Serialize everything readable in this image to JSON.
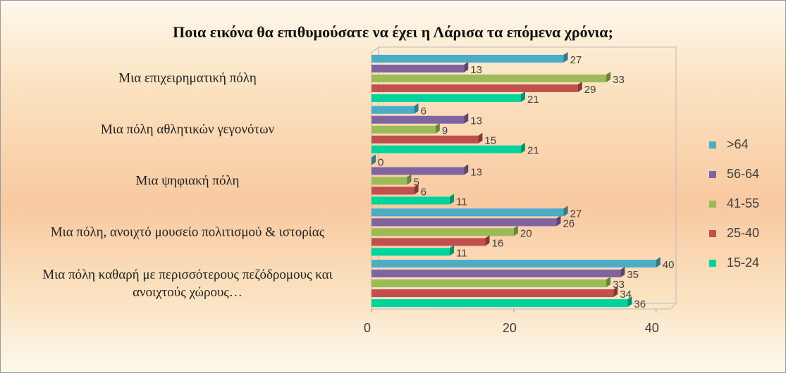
{
  "chart_data": {
    "type": "bar",
    "orientation": "horizontal",
    "title": "Ποια εικόνα θα επιθυμούσατε να έχει η Λάρισα τα επόμενα χρόνια;",
    "categories": [
      "Μια επιχειρηματική πόλη",
      "Μια πόλη αθλητικών γεγονότων",
      "Μια ψηφιακή πόλη",
      "Μια πόλη, ανοιχτό μουσείο πολιτισμού & ιστορίας",
      "Μια πόλη καθαρή με περισσότερους πεζόδρομους και ανοιχτούς χώρους…"
    ],
    "series": [
      {
        "name": ">64",
        "color": "#4bacc6",
        "values": [
          27,
          6,
          0,
          27,
          40
        ]
      },
      {
        "name": "56-64",
        "color": "#8064a2",
        "values": [
          13,
          13,
          13,
          26,
          35
        ]
      },
      {
        "name": "41-55",
        "color": "#9bbb59",
        "values": [
          33,
          9,
          5,
          20,
          33
        ]
      },
      {
        "name": "25-40",
        "color": "#c0504d",
        "values": [
          29,
          15,
          6,
          16,
          34
        ]
      },
      {
        "name": "15-24",
        "color": "#00d49c",
        "values": [
          21,
          21,
          11,
          11,
          36
        ]
      }
    ],
    "xlim": [
      0,
      42
    ],
    "xticks": [
      0,
      20,
      40
    ],
    "legend": "right"
  }
}
